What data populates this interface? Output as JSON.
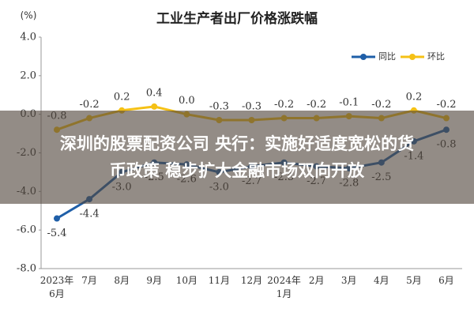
{
  "chart_data": {
    "type": "line",
    "title": "工业生产者出厂价格涨跌幅",
    "y_label": "(%)",
    "categories": [
      "2023年6月",
      "7月",
      "8月",
      "9月",
      "10月",
      "11月",
      "12月",
      "2024年1月",
      "2月",
      "3月",
      "4月",
      "5月",
      "6月"
    ],
    "series": [
      {
        "name": "同比",
        "color": "#1f5fa8",
        "values": [
          -5.4,
          -4.4,
          -3.0,
          -2.5,
          -2.6,
          -3.0,
          -2.7,
          -2.5,
          -2.7,
          -2.8,
          -2.5,
          -1.4,
          -0.8
        ],
        "value_labels": [
          "-5.4",
          "-4.4",
          "-3.0",
          "-2.5",
          "-2.6",
          "-3.0",
          "-2.7",
          "-2.5",
          "-2.7",
          "-2.8",
          "-2.5",
          "-1.4",
          "-0.8"
        ]
      },
      {
        "name": "环比",
        "color": "#f5c116",
        "values": [
          -0.8,
          -0.2,
          0.2,
          0.4,
          0.0,
          -0.3,
          -0.3,
          -0.2,
          -0.2,
          -0.1,
          -0.2,
          0.2,
          -0.2
        ],
        "value_labels": [
          "-0.8",
          "-0.2",
          "0.2",
          "0.4",
          "0.0",
          "-0.3",
          "-0.3",
          "-0.2",
          "-0.2",
          "-0.1",
          "-0.2",
          "0.2",
          "-0.2"
        ]
      }
    ],
    "ylim": [
      -8,
      4
    ],
    "yticks": [
      {
        "value": -8,
        "label": "-8.0"
      },
      {
        "value": -6,
        "label": "-6.0"
      },
      {
        "value": -4,
        "label": "-4.0"
      },
      {
        "value": -2,
        "label": "-2.0"
      },
      {
        "value": 0,
        "label": "0.0"
      },
      {
        "value": 2,
        "label": "2.0"
      },
      {
        "value": 4,
        "label": "4.0"
      }
    ],
    "grid": false,
    "legend": "upper right"
  },
  "overlay": {
    "lines": [
      "深圳的股票配资公司 央行：实施好适度宽松的货",
      "币政策 稳步扩大金融市场双向开放"
    ]
  }
}
